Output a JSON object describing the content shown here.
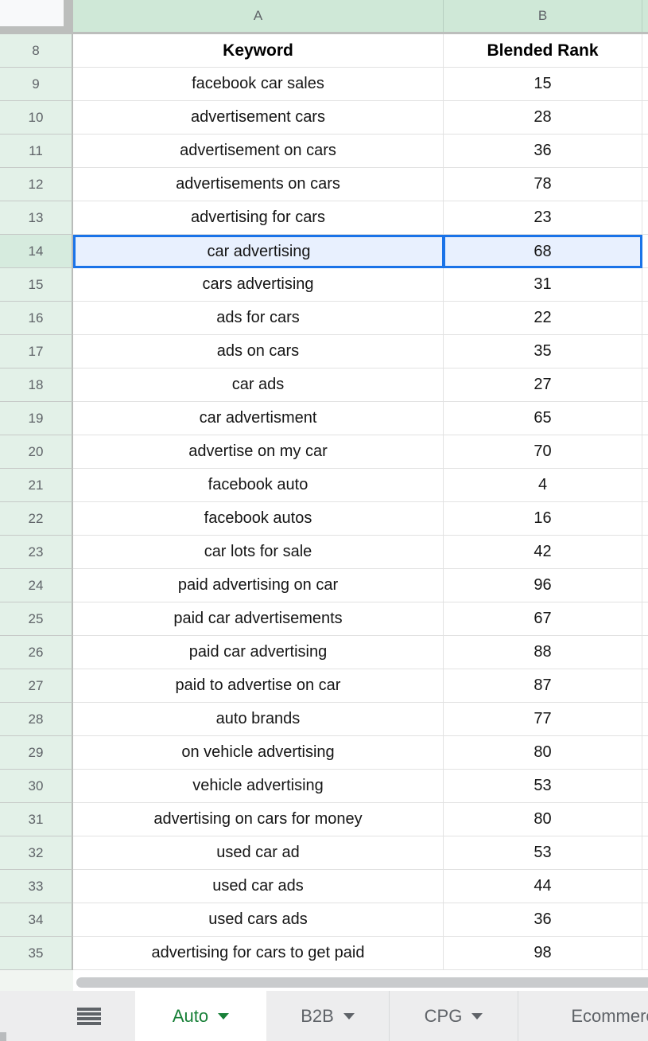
{
  "app_title": "Google Sheets mobile grid",
  "columns": [
    {
      "id": "A"
    },
    {
      "id": "B"
    }
  ],
  "sheet": {
    "rows": [
      {
        "row": "8",
        "cells": [
          "Keyword",
          "Blended Rank"
        ],
        "bold": true
      },
      {
        "row": "9",
        "cells": [
          "facebook car sales",
          "15"
        ]
      },
      {
        "row": "10",
        "cells": [
          "advertisement cars",
          "28"
        ]
      },
      {
        "row": "11",
        "cells": [
          "advertisement on cars",
          "36"
        ]
      },
      {
        "row": "12",
        "cells": [
          "advertisements on cars",
          "78"
        ]
      },
      {
        "row": "13",
        "cells": [
          "advertising for cars",
          "23"
        ]
      },
      {
        "row": "14",
        "cells": [
          "car advertising",
          "68"
        ],
        "selected": true
      },
      {
        "row": "15",
        "cells": [
          "cars advertising",
          "31"
        ]
      },
      {
        "row": "16",
        "cells": [
          "ads for cars",
          "22"
        ]
      },
      {
        "row": "17",
        "cells": [
          "ads on cars",
          "35"
        ]
      },
      {
        "row": "18",
        "cells": [
          "car ads",
          "27"
        ]
      },
      {
        "row": "19",
        "cells": [
          "car advertisment",
          "65"
        ]
      },
      {
        "row": "20",
        "cells": [
          "advertise on my car",
          "70"
        ]
      },
      {
        "row": "21",
        "cells": [
          "facebook auto",
          "4"
        ]
      },
      {
        "row": "22",
        "cells": [
          "facebook autos",
          "16"
        ]
      },
      {
        "row": "23",
        "cells": [
          "car lots for sale",
          "42"
        ]
      },
      {
        "row": "24",
        "cells": [
          "paid advertising on car",
          "96"
        ]
      },
      {
        "row": "25",
        "cells": [
          "paid car advertisements",
          "67"
        ]
      },
      {
        "row": "26",
        "cells": [
          "paid car advertising",
          "88"
        ]
      },
      {
        "row": "27",
        "cells": [
          "paid to advertise on car",
          "87"
        ]
      },
      {
        "row": "28",
        "cells": [
          "auto brands",
          "77"
        ]
      },
      {
        "row": "29",
        "cells": [
          "on vehicle advertising",
          "80"
        ]
      },
      {
        "row": "30",
        "cells": [
          "vehicle advertising",
          "53"
        ]
      },
      {
        "row": "31",
        "cells": [
          "advertising on cars for money",
          "80"
        ]
      },
      {
        "row": "32",
        "cells": [
          "used car ad",
          "53"
        ]
      },
      {
        "row": "33",
        "cells": [
          "used car ads",
          "44"
        ]
      },
      {
        "row": "34",
        "cells": [
          "used cars ads",
          "36"
        ]
      },
      {
        "row": "35",
        "cells": [
          "advertising for cars to get paid",
          "98"
        ]
      }
    ]
  },
  "selection": {
    "range": "A14:B14",
    "active_cell": "A14"
  },
  "tabs": [
    {
      "label": "Auto",
      "active": true,
      "has_dropdown": true
    },
    {
      "label": "B2B",
      "active": false,
      "has_dropdown": true
    },
    {
      "label": "CPG",
      "active": false,
      "has_dropdown": true
    },
    {
      "label": "Ecommerce",
      "active": false,
      "has_dropdown": false
    }
  ],
  "colors": {
    "column_header_bg": "#cfe8d7",
    "row_header_bg": "#e3f1e8",
    "selected_row_header_bg": "#d6ebde",
    "selection_border": "#1a73e8",
    "selection_fill": "#e8f0fe",
    "active_tab_text": "#188038",
    "inactive_tab_text": "#5f6368",
    "gridline": "#e2e2e2",
    "tabbar_bg": "#ededee",
    "scrollbar": "#c9cbcd"
  }
}
